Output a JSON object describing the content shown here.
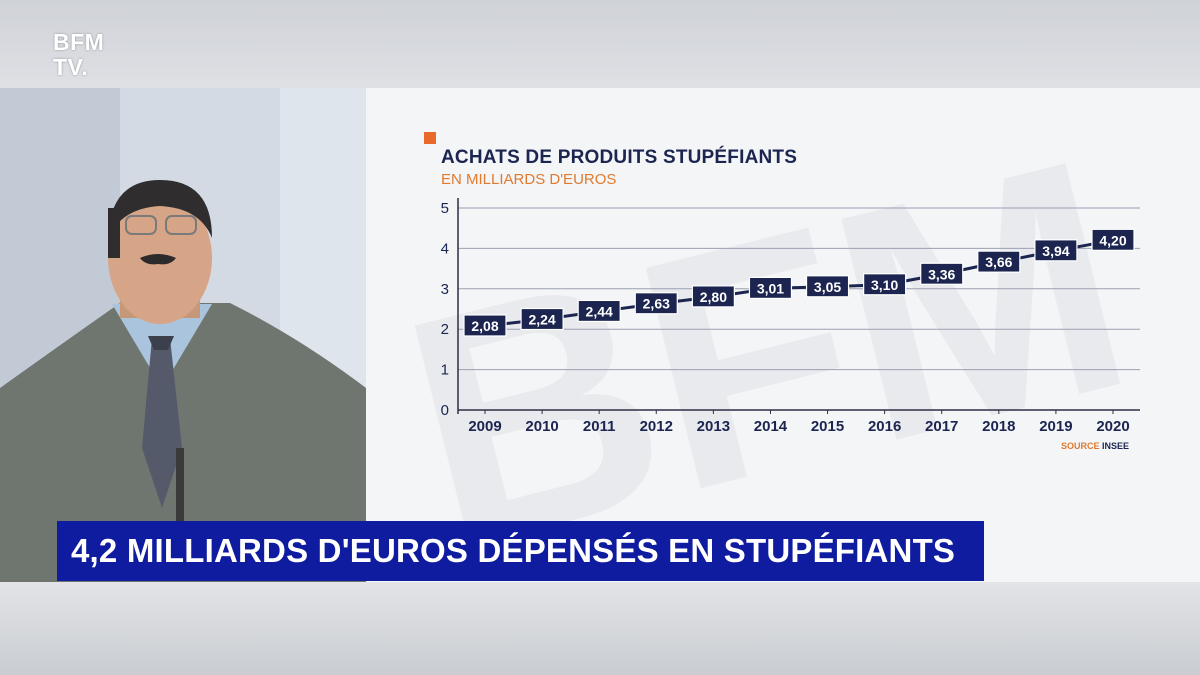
{
  "channel": {
    "logo_line1": "BFM",
    "logo_line2": "TV."
  },
  "banner": {
    "headline": "4,2 MILLIARDS D'EUROS DÉPENSÉS EN STUPÉFIANTS"
  },
  "colors": {
    "banner_blue": "#0f1ca0",
    "title_navy": "#1b2550",
    "accent_orange": "#e8692a",
    "line": "#1b2550",
    "label_box": "#1b2550"
  },
  "chart_data": {
    "type": "line",
    "title": "ACHATS DE PRODUITS STUPÉFIANTS",
    "subtitle": "EN MILLIARDS D'EUROS",
    "source_label": "SOURCE",
    "source_name": "INSEE",
    "categories": [
      "2009",
      "2010",
      "2011",
      "2012",
      "2013",
      "2014",
      "2015",
      "2016",
      "2017",
      "2018",
      "2019",
      "2020"
    ],
    "values": [
      2.08,
      2.24,
      2.44,
      2.63,
      2.8,
      3.01,
      3.05,
      3.1,
      3.36,
      3.66,
      3.94,
      4.2
    ],
    "value_labels": [
      "2,08",
      "2,24",
      "2,44",
      "2,63",
      "2,80",
      "3,01",
      "3,05",
      "3,10",
      "3,36",
      "3,66",
      "3,94",
      "4,20"
    ],
    "y_ticks": [
      0,
      1,
      2,
      3,
      4,
      5
    ],
    "ylim": [
      0,
      5
    ],
    "grid": true,
    "xlabel": "",
    "ylabel": ""
  }
}
